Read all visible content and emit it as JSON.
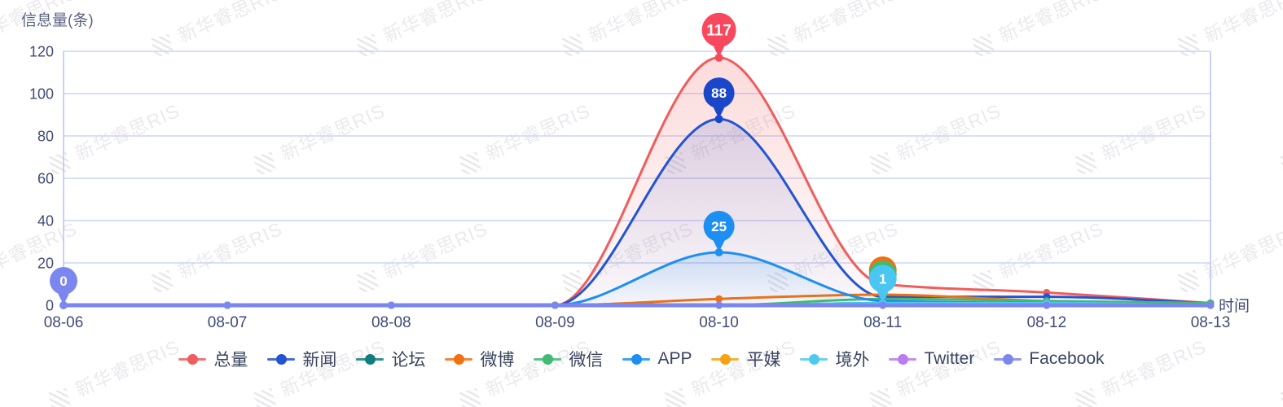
{
  "axes": {
    "y_title": "信息量(条)",
    "x_title": "时间"
  },
  "watermark": {
    "text": "新华睿思RIS"
  },
  "colors": {
    "grid": "#cbd5f5",
    "axis": "#b9c6f2",
    "tick_text": "#3f4d74",
    "legend_text": "#3a4560",
    "title_text": "#5b6585",
    "pin_label": "#ffffff"
  },
  "chart_data": {
    "type": "line",
    "title": "",
    "xlabel": "时间",
    "ylabel": "信息量(条)",
    "x": [
      "08-06",
      "08-07",
      "08-08",
      "08-09",
      "08-10",
      "08-11",
      "08-12",
      "08-13"
    ],
    "ylim": [
      0,
      120
    ],
    "y_ticks": [
      0,
      20,
      40,
      60,
      80,
      100,
      120
    ],
    "grid": true,
    "smooth": true,
    "legend_position": "bottom",
    "series": [
      {
        "name": "总量",
        "color": "#f15c5c",
        "pin_color": "#f7485e",
        "area_opacity": 0.22,
        "values": [
          0,
          0,
          0,
          0,
          117,
          10,
          6,
          1
        ],
        "max_pin": {
          "x_index": 4,
          "value": 117,
          "label": "117"
        }
      },
      {
        "name": "新闻",
        "color": "#2254d3",
        "pin_color": "#1a46c9",
        "area_opacity": 0.15,
        "values": [
          0,
          0,
          0,
          0,
          88,
          4,
          4,
          1
        ],
        "max_pin": {
          "x_index": 4,
          "value": 88,
          "label": "88"
        }
      },
      {
        "name": "论坛",
        "color": "#0f7e83",
        "values": [
          0,
          0,
          0,
          0,
          0,
          1,
          1,
          0
        ]
      },
      {
        "name": "微博",
        "color": "#f2700f",
        "pin_color": "#f2700f",
        "values": [
          0,
          0,
          0,
          0,
          3,
          5,
          2,
          1
        ],
        "max_pin": {
          "x_index": 5,
          "value": 5,
          "label": "5"
        }
      },
      {
        "name": "微信",
        "color": "#41ba74",
        "pin_color": "#41ba74",
        "values": [
          0,
          0,
          0,
          0,
          0,
          3,
          2,
          1
        ],
        "max_pin": {
          "x_index": 5,
          "value": 3,
          "label": "3"
        }
      },
      {
        "name": "APP",
        "color": "#1e8ff2",
        "pin_color": "#1e8ff2",
        "area_opacity": 0.18,
        "values": [
          0,
          0,
          0,
          0,
          25,
          2,
          1,
          0
        ],
        "max_pin": {
          "x_index": 4,
          "value": 25,
          "label": "25"
        }
      },
      {
        "name": "平媒",
        "color": "#f5a311",
        "values": [
          0,
          0,
          0,
          0,
          0,
          0,
          0,
          0
        ]
      },
      {
        "name": "境外",
        "color": "#4ec9f0",
        "pin_color": "#49c7f2",
        "values": [
          0,
          0,
          0,
          0,
          0,
          1,
          1,
          0
        ],
        "max_pin": {
          "x_index": 5,
          "value": 1,
          "label": "1"
        }
      },
      {
        "name": "Twitter",
        "color": "#b97af2",
        "values": [
          0,
          0,
          0,
          0,
          0,
          0,
          0,
          0
        ]
      },
      {
        "name": "Facebook",
        "color": "#7b86ee",
        "pin_color": "#7b86ee",
        "values": [
          0,
          0,
          0,
          0,
          0,
          0,
          0,
          0
        ],
        "max_pin": {
          "x_index": 0,
          "value": 0,
          "label": "0"
        }
      }
    ]
  }
}
